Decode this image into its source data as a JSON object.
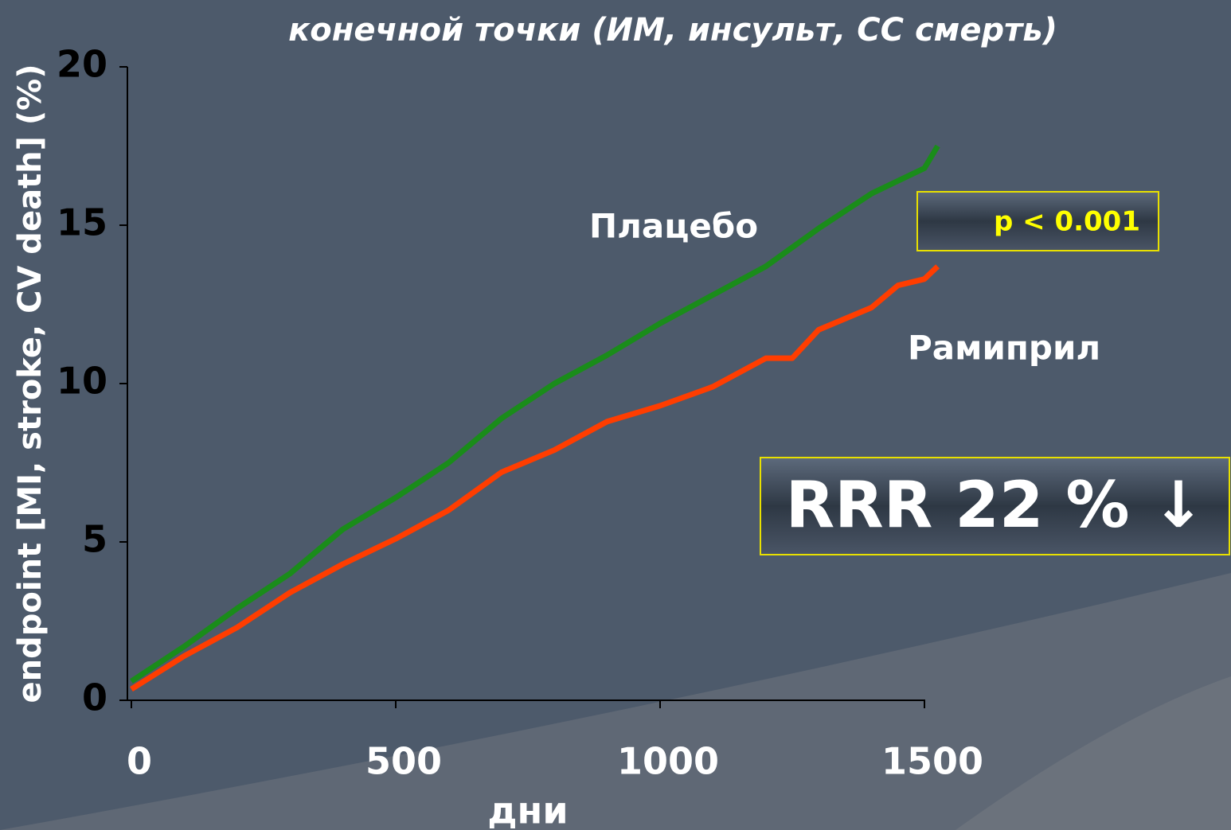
{
  "chart_data": {
    "type": "line",
    "title": "конечной точки (ИМ, инсульт, СС смерть)",
    "ylabel": "endpoint [MI, stroke, CV death] (%)",
    "xlabel": "дни",
    "x": [
      0,
      100,
      200,
      300,
      400,
      500,
      600,
      700,
      800,
      900,
      1000,
      1100,
      1200,
      1250,
      1300,
      1400,
      1450,
      1500,
      1525
    ],
    "series": [
      {
        "name": "Плацебо",
        "color": "#1a8c1a",
        "values": [
          0.6,
          1.7,
          2.9,
          4.0,
          5.4,
          6.4,
          7.5,
          8.9,
          10.0,
          10.9,
          11.9,
          12.8,
          13.7,
          14.3,
          14.9,
          16.0,
          16.4,
          16.8,
          17.5
        ]
      },
      {
        "name": "Рамиприл",
        "color": "#ff3d00",
        "values": [
          0.35,
          1.4,
          2.3,
          3.4,
          4.3,
          5.1,
          6.0,
          7.2,
          7.9,
          8.8,
          9.3,
          9.9,
          10.8,
          10.8,
          11.7,
          12.4,
          13.1,
          13.3,
          13.7
        ]
      }
    ],
    "xlim": [
      0,
      1500
    ],
    "xticks": [
      0,
      500,
      1000,
      1500
    ],
    "ylim": [
      0,
      20
    ],
    "yticks": [
      0,
      5,
      10,
      15,
      20
    ],
    "annotations": [
      "p < 0.001",
      "RRR 22 % ↓"
    ]
  }
}
